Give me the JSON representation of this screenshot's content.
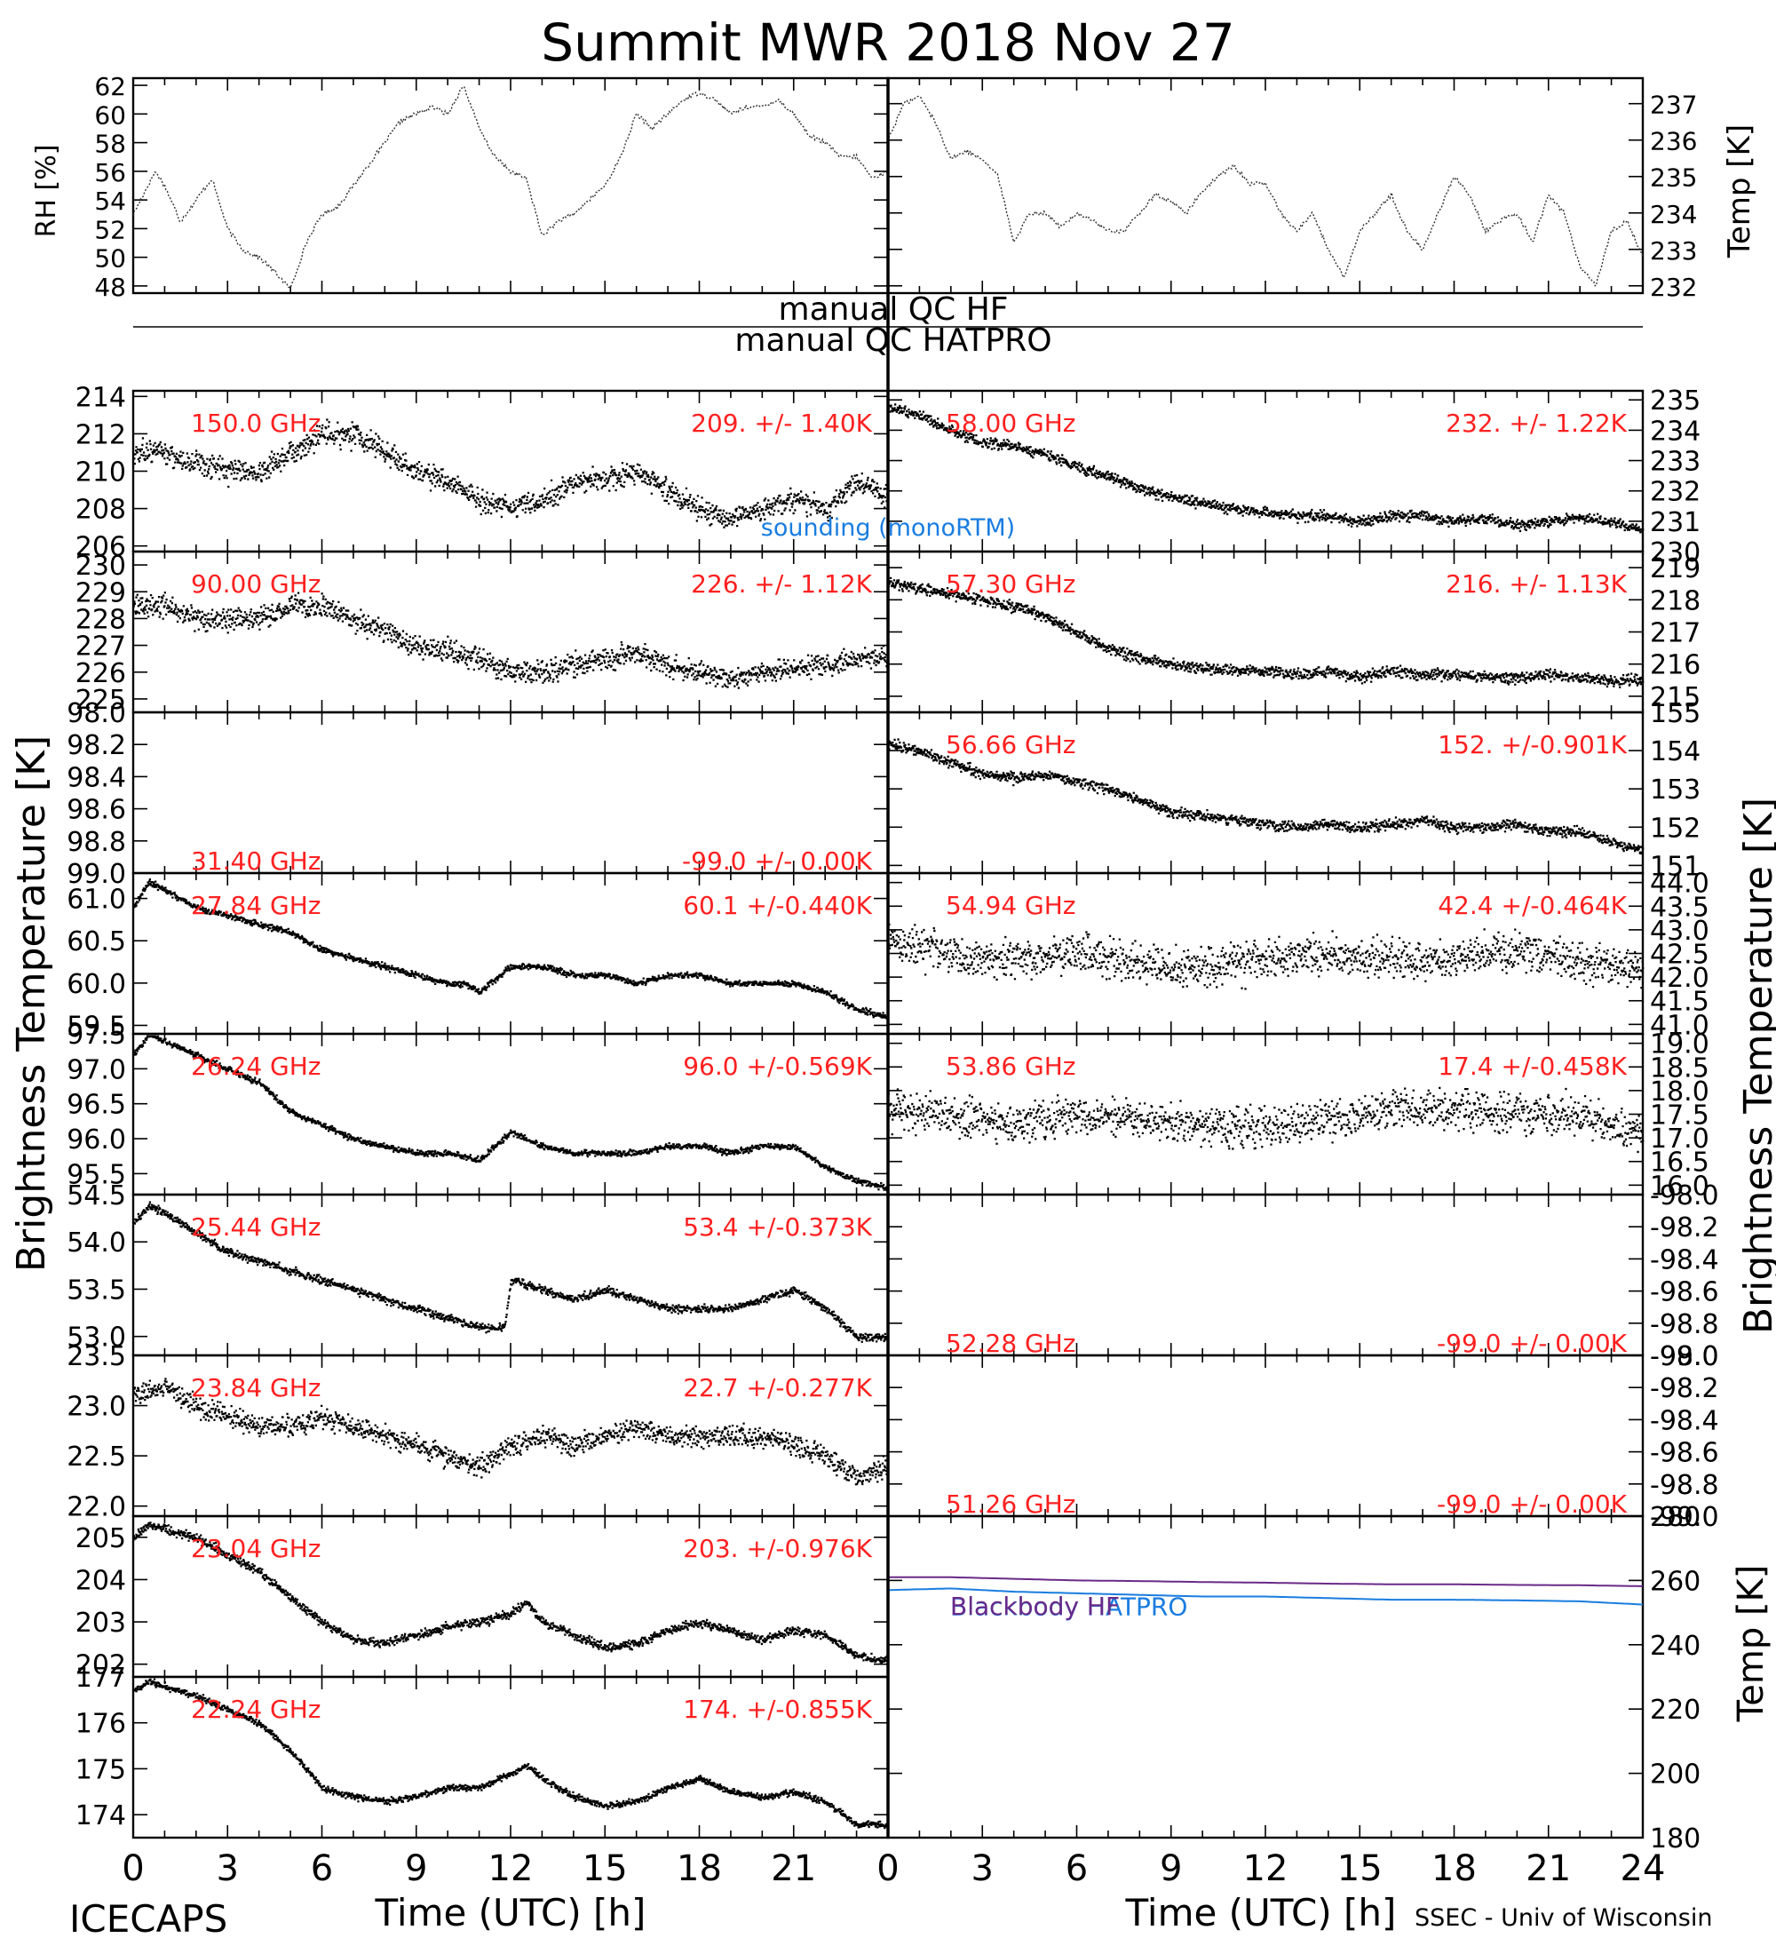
{
  "title": "Summit MWR 2018 Nov 27",
  "footer": {
    "left": "ICECAPS",
    "right": "SSEC - Univ of Wisconsin"
  },
  "colors": {
    "stat": "#ff2020",
    "sounding": "#1a7de0",
    "blackbody_hatpro": "#1a7de0",
    "blackbody_hf": "#6a2a88",
    "data": "#000000"
  },
  "qc": {
    "line1": "manual QC HF",
    "line2": "manual QC HATPRO"
  },
  "axes": {
    "x_label": "Time (UTC) [h]",
    "x_ticks_left": [
      "0",
      "3",
      "6",
      "9",
      "12",
      "15",
      "18",
      "21"
    ],
    "x_ticks_right": [
      "0",
      "3",
      "6",
      "9",
      "12",
      "15",
      "18",
      "21",
      "24"
    ],
    "left_ylabel": "Brightness Temperature [K]",
    "right_ylabel": "Brightness Temperature [K]",
    "rh_label": "RH [%]",
    "temp_label": "Temp [K]",
    "bb_temp_label": "Temp [K]"
  },
  "chart_data": [
    {
      "type": "line",
      "id": "rh",
      "ylabel": "RH [%]",
      "xlim": [
        0,
        24
      ],
      "ylim": [
        47.5,
        62.5
      ],
      "yticks": [
        "48",
        "50",
        "52",
        "54",
        "56",
        "58",
        "60",
        "62"
      ],
      "x": [
        0,
        0.7,
        1,
        1.5,
        2,
        2.5,
        3,
        3.5,
        4,
        4.5,
        5,
        5.5,
        6,
        6.5,
        7,
        7.5,
        8,
        8.5,
        9,
        9.5,
        10,
        10.5,
        11,
        11.5,
        12,
        12.5,
        13,
        13.5,
        14,
        14.5,
        15,
        15.5,
        16,
        16.5,
        17,
        17.5,
        18,
        18.5,
        19,
        19.5,
        20,
        20.5,
        21,
        21.5,
        22,
        22.5,
        23,
        23.5,
        24
      ],
      "y": [
        53,
        56,
        55,
        52.5,
        54,
        55.5,
        52,
        50.5,
        50,
        49,
        47.8,
        51,
        53,
        53.5,
        55,
        56.5,
        58,
        59.5,
        60,
        60.5,
        60,
        62,
        59,
        57,
        56,
        55.5,
        51.5,
        52.5,
        53,
        54,
        55,
        57,
        60,
        59,
        60,
        61,
        61.5,
        61,
        60,
        60.5,
        60.5,
        61,
        60,
        58.5,
        58,
        57,
        57,
        55.5,
        56
      ]
    },
    {
      "type": "line",
      "id": "air_temp",
      "ylabel": "Temp [K]",
      "xlim": [
        0,
        24
      ],
      "ylim": [
        231.8,
        237.7
      ],
      "yticks": [
        "232",
        "233",
        "234",
        "235",
        "236",
        "237"
      ],
      "x": [
        0,
        0.5,
        1,
        1.5,
        2,
        2.5,
        3,
        3.5,
        4,
        4.5,
        5,
        5.5,
        6,
        6.5,
        7,
        7.5,
        8,
        8.5,
        9,
        9.5,
        10,
        10.5,
        11,
        11.5,
        12,
        12.5,
        13,
        13.5,
        14,
        14.5,
        15,
        15.5,
        16,
        16.5,
        17,
        17.5,
        18,
        18.5,
        19,
        19.5,
        20,
        20.5,
        21,
        21.5,
        22,
        22.5,
        23,
        23.5,
        24
      ],
      "y": [
        236,
        237,
        237.2,
        236.5,
        235.5,
        235.7,
        235.5,
        235,
        233.2,
        234,
        234,
        233.6,
        234,
        233.8,
        233.5,
        233.5,
        234,
        234.5,
        234.3,
        234,
        234.6,
        235,
        235.3,
        234.8,
        234.8,
        234,
        233.5,
        234,
        233,
        232.2,
        233.5,
        234,
        234.5,
        233.5,
        233,
        234,
        235,
        234.5,
        233.5,
        233.8,
        234,
        233.2,
        234.5,
        234,
        232.5,
        232,
        233.5,
        233.8,
        232.8
      ]
    },
    {
      "type": "scatter",
      "channel": "150.0 GHz",
      "stat": "209. +/- 1.40K",
      "side": "left",
      "ylim": [
        205.7,
        214.3
      ],
      "yticks": [
        "206",
        "208",
        "210",
        "212",
        "214"
      ],
      "annotation": "sounding (monoRTM)",
      "x": [
        0,
        1,
        2,
        3,
        4,
        5,
        6,
        7,
        8,
        9,
        10,
        11,
        12,
        13,
        14,
        15,
        16,
        17,
        18,
        19,
        20,
        21,
        22,
        23,
        24
      ],
      "y": [
        211,
        211,
        210.5,
        210,
        210,
        211,
        212,
        212,
        211,
        210,
        209.5,
        208.5,
        208,
        208.5,
        209.5,
        209.5,
        210,
        209,
        208,
        207.5,
        208,
        208.5,
        208,
        209.5,
        208.5
      ],
      "noise": 0.9
    },
    {
      "type": "scatter",
      "channel": "90.00 GHz",
      "stat": "226. +/- 1.12K",
      "side": "left",
      "ylim": [
        224.5,
        230.5
      ],
      "yticks": [
        "225",
        "226",
        "227",
        "228",
        "229",
        "230"
      ],
      "x": [
        0,
        1,
        2,
        3,
        4,
        5,
        6,
        7,
        8,
        9,
        10,
        11,
        12,
        13,
        14,
        15,
        16,
        17,
        18,
        19,
        20,
        21,
        22,
        23,
        24
      ],
      "y": [
        228.5,
        228.5,
        228,
        228,
        228,
        228.5,
        228.5,
        228,
        227.5,
        227,
        226.8,
        226.5,
        226,
        226,
        226.3,
        226.5,
        226.8,
        226.2,
        226,
        225.8,
        226,
        226.2,
        226.3,
        226.5,
        226.5
      ],
      "noise": 0.6
    },
    {
      "type": "scatter",
      "channel": "31.40 GHz",
      "stat": "-99.0 +/- 0.00K",
      "side": "left",
      "ylim": [
        99.0,
        98.0
      ],
      "yticks": [
        "98.0",
        "98.2",
        "98.4",
        "98.6",
        "98.8",
        "99.0"
      ],
      "empty": true,
      "x": [],
      "y": []
    },
    {
      "type": "scatter",
      "channel": "27.84 GHz",
      "stat": "60.1 +/-0.440K",
      "side": "left",
      "ylim": [
        59.4,
        61.3
      ],
      "yticks": [
        "59.5",
        "60.0",
        "60.5",
        "61.0"
      ],
      "x": [
        0,
        0.5,
        1,
        2,
        3,
        4,
        5,
        6,
        7,
        8,
        9,
        10,
        10.5,
        11,
        12,
        13,
        14,
        15,
        16,
        17,
        18,
        19,
        20,
        21,
        22,
        23,
        24
      ],
      "y": [
        60.9,
        61.2,
        61.1,
        60.9,
        60.8,
        60.7,
        60.6,
        60.4,
        60.3,
        60.2,
        60.1,
        60.0,
        60.0,
        59.9,
        60.2,
        60.2,
        60.1,
        60.1,
        60.0,
        60.1,
        60.1,
        60.0,
        60.0,
        60.0,
        59.9,
        59.7,
        59.6
      ],
      "noise": 0.05
    },
    {
      "type": "scatter",
      "channel": "26.24 GHz",
      "stat": "96.0 +/-0.569K",
      "side": "left",
      "ylim": [
        95.2,
        97.5
      ],
      "yticks": [
        "95.5",
        "96.0",
        "96.5",
        "97.0",
        "97.5"
      ],
      "x": [
        0,
        0.5,
        1,
        2,
        3,
        4,
        5,
        6,
        7,
        8,
        9,
        10,
        11,
        12,
        13,
        14,
        15,
        16,
        17,
        18,
        19,
        20,
        21,
        22,
        23,
        24
      ],
      "y": [
        97.2,
        97.5,
        97.4,
        97.2,
        97.0,
        96.8,
        96.4,
        96.2,
        96.0,
        95.9,
        95.8,
        95.8,
        95.7,
        96.1,
        95.9,
        95.8,
        95.8,
        95.8,
        95.9,
        95.9,
        95.8,
        95.9,
        95.9,
        95.6,
        95.4,
        95.3
      ],
      "noise": 0.06
    },
    {
      "type": "scatter",
      "channel": "25.44 GHz",
      "stat": "53.4 +/-0.373K",
      "side": "left",
      "ylim": [
        52.8,
        54.5
      ],
      "yticks": [
        "53.0",
        "53.5",
        "54.0",
        "54.5"
      ],
      "x": [
        0,
        0.5,
        1,
        2,
        3,
        4,
        5,
        6,
        7,
        8,
        9,
        10,
        11,
        11.8,
        12,
        13,
        14,
        15,
        16,
        17,
        18,
        19,
        20,
        21,
        22,
        23,
        24
      ],
      "y": [
        54.2,
        54.4,
        54.3,
        54.1,
        53.9,
        53.8,
        53.7,
        53.6,
        53.5,
        53.4,
        53.3,
        53.2,
        53.1,
        53.1,
        53.6,
        53.5,
        53.4,
        53.5,
        53.4,
        53.3,
        53.3,
        53.3,
        53.4,
        53.5,
        53.3,
        53.0,
        53.0
      ],
      "noise": 0.06
    },
    {
      "type": "scatter",
      "channel": "23.84 GHz",
      "stat": "22.7 +/-0.277K",
      "side": "left",
      "ylim": [
        21.9,
        23.5
      ],
      "yticks": [
        "22.0",
        "22.5",
        "23.0",
        "23.5"
      ],
      "x": [
        0,
        1,
        2,
        3,
        4,
        5,
        6,
        7,
        8,
        9,
        10,
        11,
        12,
        13,
        14,
        15,
        16,
        17,
        18,
        19,
        20,
        21,
        22,
        23,
        24
      ],
      "y": [
        23.1,
        23.2,
        23.0,
        22.9,
        22.8,
        22.8,
        22.9,
        22.8,
        22.7,
        22.6,
        22.5,
        22.4,
        22.6,
        22.7,
        22.6,
        22.7,
        22.8,
        22.7,
        22.7,
        22.7,
        22.7,
        22.6,
        22.5,
        22.3,
        22.4
      ],
      "noise": 0.15
    },
    {
      "type": "scatter",
      "channel": "23.04 GHz",
      "stat": "203. +/-0.976K",
      "side": "left",
      "ylim": [
        201.7,
        205.5
      ],
      "yticks": [
        "202",
        "203",
        "204",
        "205"
      ],
      "x": [
        0,
        0.5,
        1,
        2,
        3,
        4,
        5,
        6,
        7,
        8,
        9,
        10,
        11,
        12,
        12.5,
        13,
        14,
        15,
        16,
        17,
        18,
        19,
        20,
        21,
        22,
        23,
        24
      ],
      "y": [
        205.0,
        205.3,
        205.2,
        205.0,
        204.6,
        204.2,
        203.6,
        203.0,
        202.6,
        202.5,
        202.7,
        202.9,
        203.0,
        203.2,
        203.5,
        203.0,
        202.7,
        202.4,
        202.5,
        202.8,
        203.0,
        202.8,
        202.6,
        202.8,
        202.7,
        202.2,
        202.1
      ],
      "noise": 0.15
    },
    {
      "type": "scatter",
      "channel": "22.24 GHz",
      "stat": "174. +/-0.855K",
      "side": "left",
      "ylim": [
        173.5,
        177.0
      ],
      "yticks": [
        "174",
        "175",
        "176",
        "177"
      ],
      "x": [
        0,
        0.5,
        1,
        2,
        3,
        4,
        5,
        6,
        7,
        8,
        9,
        10,
        11,
        12,
        12.5,
        13,
        14,
        15,
        16,
        17,
        18,
        19,
        20,
        21,
        22,
        23,
        24
      ],
      "y": [
        176.7,
        176.9,
        176.8,
        176.6,
        176.3,
        176.0,
        175.4,
        174.6,
        174.4,
        174.3,
        174.4,
        174.6,
        174.6,
        174.9,
        175.1,
        174.8,
        174.4,
        174.2,
        174.3,
        174.6,
        174.8,
        174.5,
        174.4,
        174.5,
        174.3,
        173.8,
        173.8
      ],
      "noise": 0.1
    },
    {
      "type": "scatter",
      "channel": "58.00 GHz",
      "stat": "232. +/- 1.22K",
      "side": "right",
      "ylim": [
        230.0,
        235.3
      ],
      "yticks": [
        "230",
        "231",
        "232",
        "233",
        "234",
        "235"
      ],
      "x": [
        0,
        1,
        2,
        3,
        4,
        5,
        6,
        7,
        8,
        9,
        10,
        11,
        12,
        13,
        14,
        15,
        16,
        17,
        18,
        19,
        20,
        21,
        22,
        23,
        24
      ],
      "y": [
        234.8,
        234.5,
        234.0,
        233.6,
        233.5,
        233.2,
        232.8,
        232.5,
        232.1,
        231.8,
        231.6,
        231.4,
        231.3,
        231.2,
        231.2,
        231.0,
        231.2,
        231.2,
        231.0,
        231.1,
        230.9,
        231.0,
        231.1,
        231.0,
        230.7
      ],
      "noise": 0.25
    },
    {
      "type": "scatter",
      "channel": "57.30 GHz",
      "stat": "216. +/- 1.13K",
      "side": "right",
      "ylim": [
        214.5,
        219.5
      ],
      "yticks": [
        "215",
        "216",
        "217",
        "218",
        "219"
      ],
      "x": [
        0,
        1,
        2,
        3,
        4,
        5,
        6,
        7,
        8,
        9,
        10,
        11,
        12,
        13,
        14,
        15,
        16,
        17,
        18,
        19,
        20,
        21,
        22,
        23,
        24
      ],
      "y": [
        218.5,
        218.4,
        218.2,
        218.0,
        217.8,
        217.5,
        217.0,
        216.5,
        216.2,
        216.0,
        215.9,
        215.8,
        215.8,
        215.7,
        215.8,
        215.6,
        215.8,
        215.7,
        215.7,
        215.6,
        215.6,
        215.7,
        215.6,
        215.5,
        215.5
      ],
      "noise": 0.25
    },
    {
      "type": "scatter",
      "channel": "56.66 GHz",
      "stat": "152. +/-0.901K",
      "side": "right",
      "ylim": [
        150.8,
        155.0
      ],
      "yticks": [
        "151",
        "152",
        "153",
        "154",
        "155"
      ],
      "x": [
        0,
        1,
        2,
        3,
        4,
        5,
        6,
        7,
        8,
        9,
        10,
        11,
        12,
        13,
        14,
        15,
        16,
        17,
        18,
        19,
        20,
        21,
        22,
        23,
        24
      ],
      "y": [
        154.2,
        154.0,
        153.7,
        153.4,
        153.3,
        153.4,
        153.2,
        153.0,
        152.7,
        152.4,
        152.3,
        152.2,
        152.1,
        152.0,
        152.1,
        152.0,
        152.1,
        152.2,
        152.0,
        152.0,
        152.1,
        151.9,
        151.9,
        151.6,
        151.4
      ],
      "noise": 0.2
    },
    {
      "type": "scatter",
      "channel": "54.94 GHz",
      "stat": "42.4 +/-0.464K",
      "side": "right",
      "ylim": [
        40.8,
        44.2
      ],
      "yticks": [
        "41.0",
        "41.5",
        "42.0",
        "42.5",
        "43.0",
        "43.5",
        "44.0"
      ],
      "x": [
        0,
        2,
        4,
        6,
        8,
        10,
        12,
        14,
        16,
        18,
        20,
        22,
        24
      ],
      "y": [
        42.8,
        42.5,
        42.4,
        42.5,
        42.3,
        42.2,
        42.4,
        42.5,
        42.4,
        42.4,
        42.6,
        42.3,
        42.2
      ],
      "noise": 0.6
    },
    {
      "type": "scatter",
      "channel": "53.86 GHz",
      "stat": "17.4 +/-0.458K",
      "side": "right",
      "ylim": [
        15.8,
        19.2
      ],
      "yticks": [
        "16.0",
        "16.5",
        "17.0",
        "17.5",
        "18.0",
        "18.5",
        "19.0"
      ],
      "x": [
        0,
        2,
        4,
        6,
        8,
        10,
        12,
        14,
        16,
        18,
        20,
        22,
        24
      ],
      "y": [
        17.6,
        17.5,
        17.3,
        17.5,
        17.4,
        17.3,
        17.2,
        17.4,
        17.6,
        17.6,
        17.5,
        17.5,
        17.1
      ],
      "noise": 0.6
    },
    {
      "type": "scatter",
      "channel": "52.28 GHz",
      "stat": "-99.0 +/- 0.00K",
      "side": "right",
      "ylim": [
        -99.0,
        -98.0
      ],
      "yticks": [
        "-99.0",
        "-98.8",
        "-98.6",
        "-98.4",
        "-98.2",
        "-98.0"
      ],
      "empty": true,
      "x": [],
      "y": []
    },
    {
      "type": "scatter",
      "channel": "51.26 GHz",
      "stat": "-99.0 +/- 0.00K",
      "side": "right",
      "ylim": [
        -99.0,
        -98.0
      ],
      "yticks": [
        "-99.0",
        "-98.8",
        "-98.6",
        "-98.4",
        "-98.2",
        "-98.0"
      ],
      "empty": true,
      "x": [],
      "y": []
    },
    {
      "type": "line",
      "id": "blackbody",
      "side": "right",
      "ylabel": "Temp [K]",
      "xlim": [
        0,
        24
      ],
      "ylim": [
        180,
        280
      ],
      "yticks": [
        "180",
        "200",
        "220",
        "240",
        "260",
        "280"
      ],
      "series": [
        {
          "name": "Blackbody HATPRO",
          "x": [
            0,
            2,
            4,
            6,
            8,
            10,
            12,
            14,
            16,
            18,
            20,
            22,
            24
          ],
          "y": [
            257,
            257.5,
            256.5,
            256,
            255.5,
            255,
            255,
            254.5,
            254,
            254,
            253.8,
            253.5,
            252.5
          ]
        },
        {
          "name": "Blackbody HF",
          "x": [
            0,
            2,
            4,
            6,
            8,
            10,
            12,
            14,
            16,
            18,
            20,
            22,
            24
          ],
          "y": [
            261,
            261,
            260.5,
            260,
            259.8,
            259.5,
            259.3,
            259,
            258.8,
            258.8,
            258.6,
            258.5,
            258.2
          ]
        }
      ]
    }
  ]
}
